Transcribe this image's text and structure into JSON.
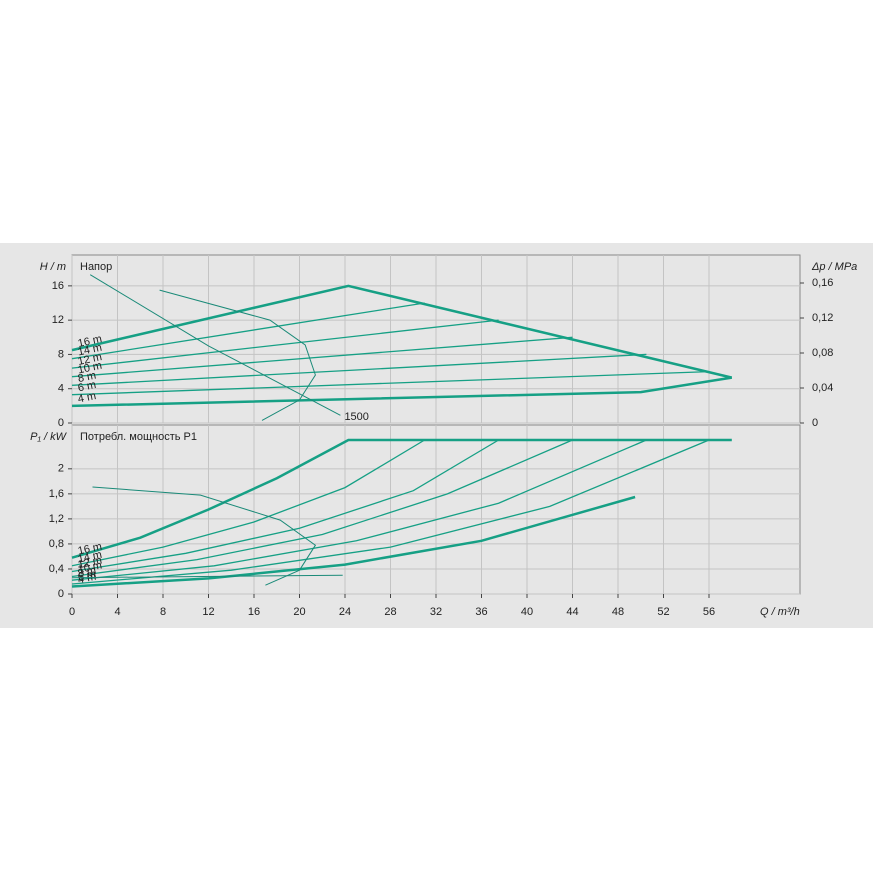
{
  "chart_data": [
    {
      "type": "line",
      "title": "Напор",
      "ylabel": "H / m",
      "y2label": "Δp / MPa",
      "xlim": [
        0,
        64
      ],
      "ylim": [
        0,
        19.6
      ],
      "yticks": [
        0,
        4,
        8,
        12,
        16
      ],
      "y2lim": [
        0,
        0.192
      ],
      "y2ticks": [
        {
          "value": 0,
          "label": "0"
        },
        {
          "value": 0.04,
          "label": "0,04"
        },
        {
          "value": 0.08,
          "label": "0,08"
        },
        {
          "value": 0.12,
          "label": "0,12"
        },
        {
          "value": 0.16,
          "label": "0,16"
        }
      ],
      "grid": true,
      "series": [
        {
          "name": "16 m",
          "color": "#16a085",
          "linewidth": 2.5,
          "x": [
            0,
            24.3,
            58
          ],
          "values": [
            8.5,
            16,
            5.3
          ]
        },
        {
          "name": "14 m",
          "color": "#16a085",
          "linewidth": 1.3,
          "x": [
            0,
            31
          ],
          "values": [
            7.5,
            14
          ]
        },
        {
          "name": "12 m",
          "color": "#16a085",
          "linewidth": 1.3,
          "x": [
            0,
            37.5
          ],
          "values": [
            6.4,
            12
          ]
        },
        {
          "name": "10 m",
          "color": "#16a085",
          "linewidth": 1.3,
          "x": [
            0,
            44
          ],
          "values": [
            5.4,
            10
          ]
        },
        {
          "name": "8 m",
          "color": "#16a085",
          "linewidth": 1.3,
          "x": [
            0,
            50.5
          ],
          "values": [
            4.4,
            8
          ]
        },
        {
          "name": "6 m",
          "color": "#16a085",
          "linewidth": 1.3,
          "x": [
            0,
            56
          ],
          "values": [
            3.3,
            6
          ]
        },
        {
          "name": "4 m",
          "color": "#16a085",
          "linewidth": 2.5,
          "x": [
            0,
            50,
            58
          ],
          "values": [
            2,
            3.6,
            5.3
          ]
        },
        {
          "name": "1500",
          "color": "#1a8a78",
          "linewidth": 1,
          "x": [
            1.6,
            12,
            23.6
          ],
          "values": [
            17.3,
            9,
            0.9
          ]
        },
        {
          "color": "#1a8a78",
          "linewidth": 1,
          "x": [
            7.7,
            17.4,
            20.5,
            21.4,
            20,
            16.7
          ],
          "values": [
            15.5,
            12,
            9.1,
            5.6,
            2.7,
            0.3
          ]
        }
      ]
    },
    {
      "type": "line",
      "title": "Потребл. мощность P1",
      "ylabel": "P₁ / kW",
      "xlabel": "Q / m³/h",
      "xlim": [
        0,
        64
      ],
      "xticks": [
        0,
        4,
        8,
        12,
        16,
        20,
        24,
        28,
        32,
        36,
        40,
        44,
        48,
        52,
        56
      ],
      "ylim": [
        0,
        2.7
      ],
      "yticks": [
        {
          "value": 0,
          "label": "0"
        },
        {
          "value": 0.4,
          "label": "0,4"
        },
        {
          "value": 0.8,
          "label": "0,8"
        },
        {
          "value": 1.2,
          "label": "1,2"
        },
        {
          "value": 1.6,
          "label": "1,6"
        },
        {
          "value": 2,
          "label": "2"
        }
      ],
      "grid": true,
      "series": [
        {
          "name": "16 m",
          "color": "#16a085",
          "linewidth": 2.5,
          "x": [
            0,
            6,
            12,
            18,
            24.3,
            58
          ],
          "values": [
            0.58,
            0.9,
            1.35,
            1.85,
            2.46,
            2.46
          ]
        },
        {
          "name": "14 m",
          "color": "#16a085",
          "linewidth": 1.3,
          "x": [
            0,
            8,
            16,
            24,
            31
          ],
          "values": [
            0.45,
            0.75,
            1.15,
            1.7,
            2.46
          ]
        },
        {
          "name": "12 m",
          "color": "#16a085",
          "linewidth": 1.3,
          "x": [
            0,
            10,
            20,
            30,
            37.5
          ],
          "values": [
            0.36,
            0.65,
            1.05,
            1.65,
            2.46
          ]
        },
        {
          "name": "10 m",
          "color": "#16a085",
          "linewidth": 1.3,
          "x": [
            0,
            11,
            22,
            33,
            44
          ],
          "values": [
            0.28,
            0.55,
            0.95,
            1.6,
            2.46
          ]
        },
        {
          "name": "8 m",
          "color": "#16a085",
          "linewidth": 1.3,
          "x": [
            0,
            12.5,
            25,
            37.5,
            50.5
          ],
          "values": [
            0.22,
            0.45,
            0.85,
            1.45,
            2.46
          ]
        },
        {
          "name": "6 m",
          "color": "#16a085",
          "linewidth": 1.3,
          "x": [
            0,
            14,
            28,
            42,
            56
          ],
          "values": [
            0.16,
            0.38,
            0.75,
            1.4,
            2.46
          ]
        },
        {
          "name": "4 m",
          "color": "#16a085",
          "linewidth": 2.5,
          "x": [
            0,
            12,
            24,
            36,
            49.5
          ],
          "values": [
            0.12,
            0.25,
            0.47,
            0.85,
            1.55
          ]
        },
        {
          "color": "#1a8a78",
          "linewidth": 1,
          "x": [
            1.8,
            11.3,
            18.3,
            21.4,
            20,
            17
          ],
          "values": [
            1.71,
            1.58,
            1.18,
            0.78,
            0.38,
            0.14
          ]
        },
        {
          "color": "#1a8a78",
          "linewidth": 1,
          "x": [
            0,
            23.8
          ],
          "values": [
            0.26,
            0.3
          ]
        }
      ]
    }
  ]
}
